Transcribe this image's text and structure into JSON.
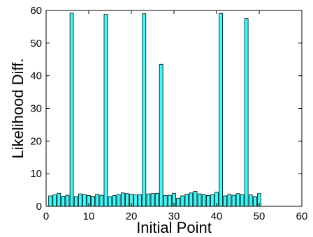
{
  "chart_data": {
    "type": "bar",
    "title": "",
    "xlabel": "Initial Point",
    "ylabel": "Likelihood Diff.",
    "xlim": [
      0,
      60
    ],
    "ylim": [
      0,
      60
    ],
    "xticks": [
      0,
      10,
      20,
      30,
      40,
      50,
      60
    ],
    "yticks": [
      0,
      10,
      20,
      30,
      40,
      50,
      60
    ],
    "grid": false,
    "bar_color": "#33ffff",
    "edge_color": "#000000",
    "x": [
      1,
      2,
      3,
      4,
      5,
      6,
      7,
      8,
      9,
      10,
      11,
      12,
      13,
      14,
      15,
      16,
      17,
      18,
      19,
      20,
      21,
      22,
      23,
      24,
      25,
      26,
      27,
      28,
      29,
      30,
      31,
      32,
      33,
      34,
      35,
      36,
      37,
      38,
      39,
      40,
      41,
      42,
      43,
      44,
      45,
      46,
      47,
      48,
      49,
      50
    ],
    "values": [
      3.2,
      3.5,
      4.0,
      3.1,
      3.4,
      59.2,
      3.0,
      3.8,
      3.6,
      3.3,
      3.1,
      3.7,
      3.4,
      58.8,
      3.0,
      3.3,
      3.6,
      4.1,
      3.9,
      3.7,
      3.5,
      3.6,
      59.0,
      3.8,
      3.9,
      4.0,
      43.5,
      3.3,
      3.4,
      4.0,
      2.5,
      3.2,
      3.7,
      4.1,
      4.6,
      3.8,
      3.6,
      3.3,
      3.6,
      4.3,
      59.1,
      3.2,
      3.7,
      3.4,
      3.9,
      3.6,
      57.5,
      3.5,
      3.0,
      3.9
    ]
  }
}
